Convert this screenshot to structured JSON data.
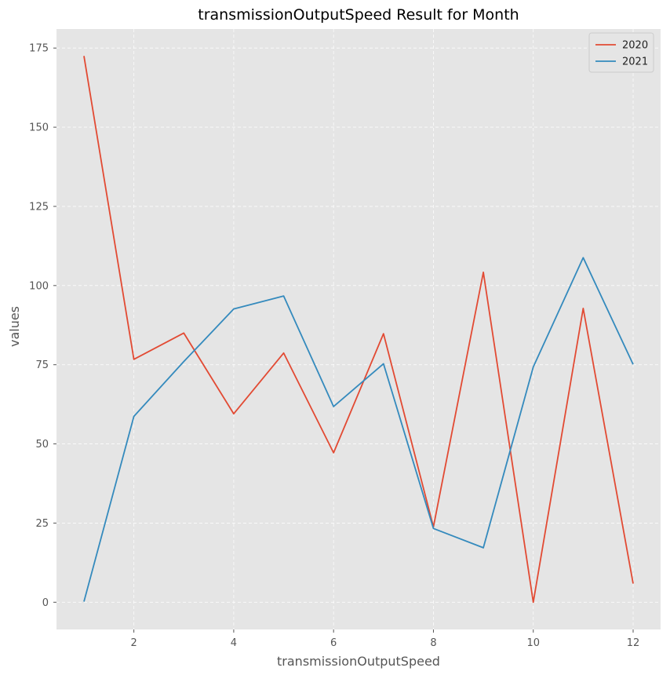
{
  "chart_data": {
    "type": "line",
    "title": "transmissionOutputSpeed Result for Month",
    "xlabel": "transmissionOutputSpeed",
    "ylabel": "values",
    "x": [
      1,
      2,
      3,
      4,
      5,
      6,
      7,
      8,
      9,
      10,
      11,
      12
    ],
    "xlim": [
      0.45,
      12.55
    ],
    "ylim": [
      -8.6,
      181
    ],
    "xticks": [
      2,
      4,
      6,
      8,
      10,
      12
    ],
    "yticks": [
      0,
      25,
      50,
      75,
      100,
      125,
      150,
      175
    ],
    "grid": true,
    "legend_position": "top-right",
    "series": [
      {
        "name": "2020",
        "color": "#E24A33",
        "values": [
          172.5,
          76.7,
          85.0,
          59.5,
          78.7,
          47.2,
          84.8,
          23.8,
          104.2,
          0.0,
          92.8,
          5.9
        ]
      },
      {
        "name": "2021",
        "color": "#348ABD",
        "values": [
          0.2,
          58.7,
          76.0,
          92.6,
          96.7,
          61.8,
          75.3,
          23.3,
          17.2,
          74.3,
          108.8,
          75.1
        ]
      }
    ]
  },
  "style": {
    "plot_background": "#E5E5E5",
    "page_background": "#FFFFFF"
  }
}
